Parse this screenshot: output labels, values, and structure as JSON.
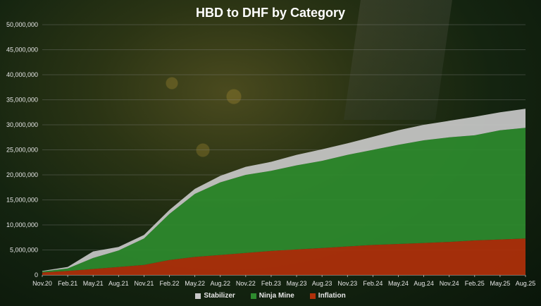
{
  "chart_data": {
    "type": "area",
    "title": "HBD to DHF by Category",
    "xlabel": "",
    "ylabel": "",
    "ylim": [
      0,
      50000000
    ],
    "yticks": [
      0,
      5000000,
      10000000,
      15000000,
      20000000,
      25000000,
      30000000,
      35000000,
      40000000,
      45000000,
      50000000
    ],
    "ytick_labels": [
      "0",
      "5,000,000",
      "10,000,000",
      "15,000,000",
      "20,000,000",
      "25,000,000",
      "30,000,000",
      "35,000,000",
      "40,000,000",
      "45,000,000",
      "50,000,000"
    ],
    "categories": [
      "Nov.20",
      "Feb.21",
      "May.21",
      "Aug.21",
      "Nov.21",
      "Feb.22",
      "May.22",
      "Aug.22",
      "Nov.22",
      "Feb.23",
      "May.23",
      "Aug.23",
      "Nov.23",
      "Feb.24",
      "May.24",
      "Aug.24",
      "Nov.24",
      "Feb.25",
      "May.25",
      "Aug.25"
    ],
    "stacked": true,
    "grid": true,
    "legend_position": "bottom",
    "series": [
      {
        "name": "Inflation",
        "color": "#b0300a",
        "values": [
          500000,
          800000,
          1200000,
          1600000,
          2000000,
          3000000,
          3600000,
          4000000,
          4400000,
          4800000,
          5100000,
          5400000,
          5700000,
          6000000,
          6200000,
          6400000,
          6600000,
          6900000,
          7100000,
          7300000
        ]
      },
      {
        "name": "Ninja Mine",
        "color": "#2e8b2e",
        "values": [
          200000,
          500000,
          2200000,
          3300000,
          5300000,
          9200000,
          12600000,
          14500000,
          15600000,
          16000000,
          16800000,
          17400000,
          18300000,
          19000000,
          19800000,
          20500000,
          20900000,
          21000000,
          21800000,
          22100000
        ]
      },
      {
        "name": "Stabilizer",
        "color": "#c8c8c8",
        "values": [
          100000,
          300000,
          1300000,
          700000,
          700000,
          800000,
          1000000,
          1300000,
          1600000,
          1800000,
          2100000,
          2300000,
          2300000,
          2600000,
          2900000,
          3100000,
          3300000,
          3700000,
          3600000,
          3800000
        ]
      }
    ],
    "legend_order": [
      "Stabilizer",
      "Ninja Mine",
      "Inflation"
    ]
  }
}
